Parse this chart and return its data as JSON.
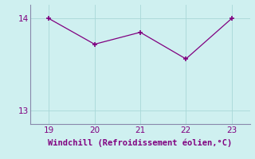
{
  "x": [
    19,
    20,
    21,
    22,
    23
  ],
  "y": [
    14.0,
    13.72,
    13.85,
    13.56,
    14.0
  ],
  "line_color": "#800080",
  "marker_color": "#800080",
  "bg_color": "#cff0f0",
  "xlabel": "Windchill (Refroidissement éolien,°C)",
  "ylim": [
    12.85,
    14.15
  ],
  "xlim": [
    18.6,
    23.4
  ],
  "yticks": [
    13,
    14
  ],
  "xticks": [
    19,
    20,
    21,
    22,
    23
  ],
  "grid_color": "#a8d8d8",
  "xlabel_color": "#800080",
  "tick_color": "#800080",
  "spine_color": "#8888aa",
  "font_size": 7.5
}
